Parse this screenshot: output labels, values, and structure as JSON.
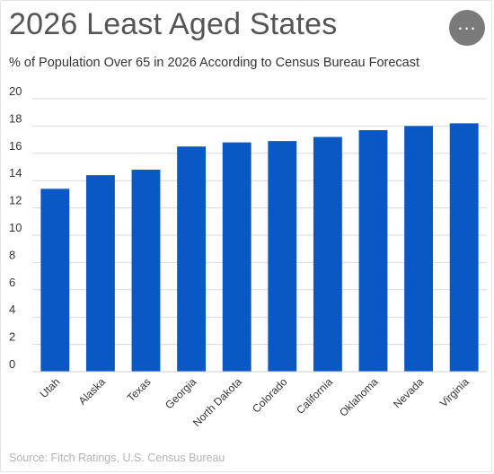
{
  "header": {
    "menu_icon": "more-horizontal-icon",
    "menu_glyph": "..."
  },
  "footer": {
    "source": "Source: Fitch Ratings, U.S. Census Bureau"
  },
  "colors": {
    "bar": "#0a58c4",
    "gridline": "#d9d9d9",
    "axis": "#cfcfcf",
    "menu_button": "#7a7a7a"
  },
  "chart_data": {
    "type": "bar",
    "title": "2026 Least Aged States",
    "subtitle": "% of Population Over 65 in 2026 According to Census Bureau Forecast",
    "xlabel": "",
    "ylabel": "",
    "ylim": [
      0,
      20
    ],
    "yticks": [
      0,
      2,
      4,
      6,
      8,
      10,
      12,
      14,
      16,
      18,
      20
    ],
    "grid": true,
    "legend": "none",
    "categories": [
      "Utah",
      "Alaska",
      "Texas",
      "Georgia",
      "North Dakota",
      "Colorado",
      "California",
      "Oklahoma",
      "Nevada",
      "Virginia"
    ],
    "values": [
      13.4,
      14.4,
      14.8,
      16.5,
      16.8,
      16.9,
      17.2,
      17.7,
      18.0,
      18.2
    ]
  }
}
